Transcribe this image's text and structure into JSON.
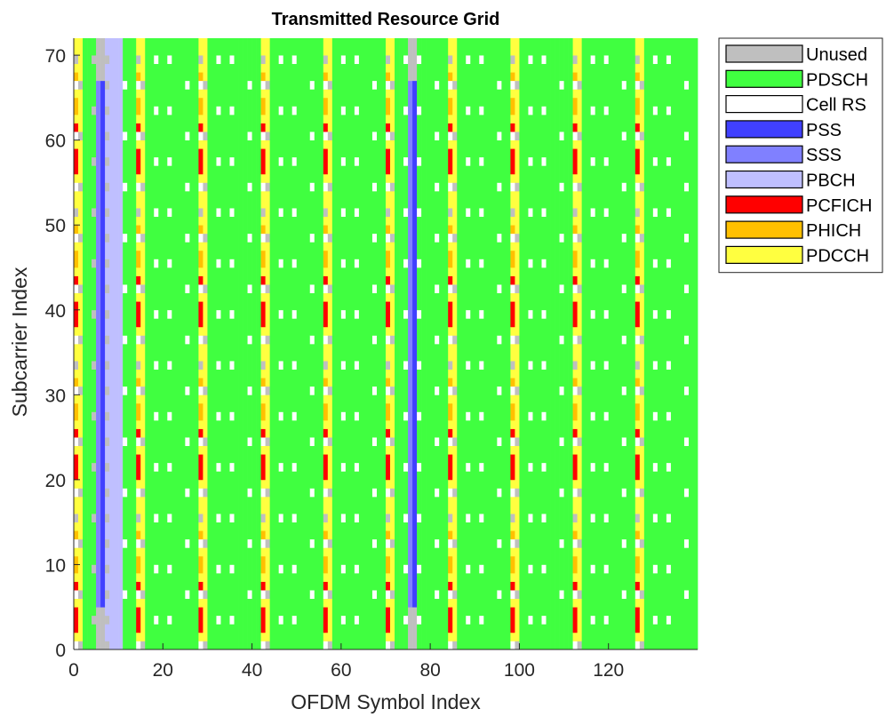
{
  "chart_data": {
    "type": "heatmap",
    "title": "Transmitted Resource Grid",
    "xlabel": "OFDM Symbol Index",
    "ylabel": "Subcarrier Index",
    "xlim": [
      0,
      140
    ],
    "ylim": [
      0,
      72
    ],
    "xticks": [
      0,
      20,
      40,
      60,
      80,
      100,
      120
    ],
    "yticks": [
      0,
      10,
      20,
      30,
      40,
      50,
      60,
      70
    ],
    "grid": false,
    "legend_position": "outside-top-right",
    "grid_size": {
      "symbols": 140,
      "subcarriers": 72
    },
    "legend": [
      {
        "name": "Unused",
        "color": "#bfbfbf"
      },
      {
        "name": "PDSCH",
        "color": "#40ff40"
      },
      {
        "name": "Cell RS",
        "color": "#ffffff"
      },
      {
        "name": "PSS",
        "color": "#4040ff"
      },
      {
        "name": "SSS",
        "color": "#8080ff"
      },
      {
        "name": "PBCH",
        "color": "#bfbfff"
      },
      {
        "name": "PCFICH",
        "color": "#ff0000"
      },
      {
        "name": "PHICH",
        "color": "#ffc000"
      },
      {
        "name": "PDCCH",
        "color": "#ffff40"
      }
    ],
    "regions": [
      {
        "channel": "PSS",
        "symbols": [
          6,
          76
        ],
        "subcarriers": [
          5,
          66
        ]
      },
      {
        "channel": "SSS",
        "symbols": [
          5,
          75
        ],
        "subcarriers": [
          5,
          66
        ]
      },
      {
        "channel": "PBCH",
        "symbols": [
          7,
          8,
          9,
          10
        ],
        "subcarriers": [
          0,
          71
        ]
      },
      {
        "channel": "Unused",
        "symbols": [
          5,
          6,
          75,
          76
        ],
        "subcarriers": [
          0,
          4
        ]
      },
      {
        "channel": "Unused",
        "symbols": [
          5,
          6,
          75,
          76
        ],
        "subcarriers": [
          67,
          71
        ]
      },
      {
        "channel": "PDCCH",
        "symbols_per_subframe": [
          0,
          1
        ],
        "subframes": 10
      },
      {
        "channel": "PCFICH",
        "symbols_per_subframe": [
          0
        ]
      },
      {
        "channel": "PHICH",
        "symbols_per_subframe": [
          0
        ]
      },
      {
        "channel": "Cell RS",
        "symbols_per_slot": [
          0,
          4
        ],
        "subcarrier_spacing": 3
      },
      {
        "channel": "PDSCH",
        "symbols": "remaining"
      }
    ]
  }
}
